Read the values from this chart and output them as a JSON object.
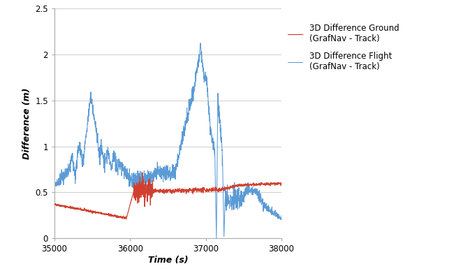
{
  "xlim": [
    35000,
    38000
  ],
  "ylim": [
    0,
    2.5
  ],
  "yticks": [
    0,
    0.5,
    1.0,
    1.5,
    2.0,
    2.5
  ],
  "xticks": [
    35000,
    36000,
    37000,
    38000
  ],
  "xlabel": "Time (s)",
  "ylabel": "Difference (m)",
  "legend_ground": "3D Difference Ground\n(GrafNav - Track)",
  "legend_flight": "3D Difference Flight\n(GrafNav - Track)",
  "color_ground": "#d04030",
  "color_flight": "#5b9bd5",
  "background_color": "#ffffff",
  "grid_color": "#c8c8c8"
}
